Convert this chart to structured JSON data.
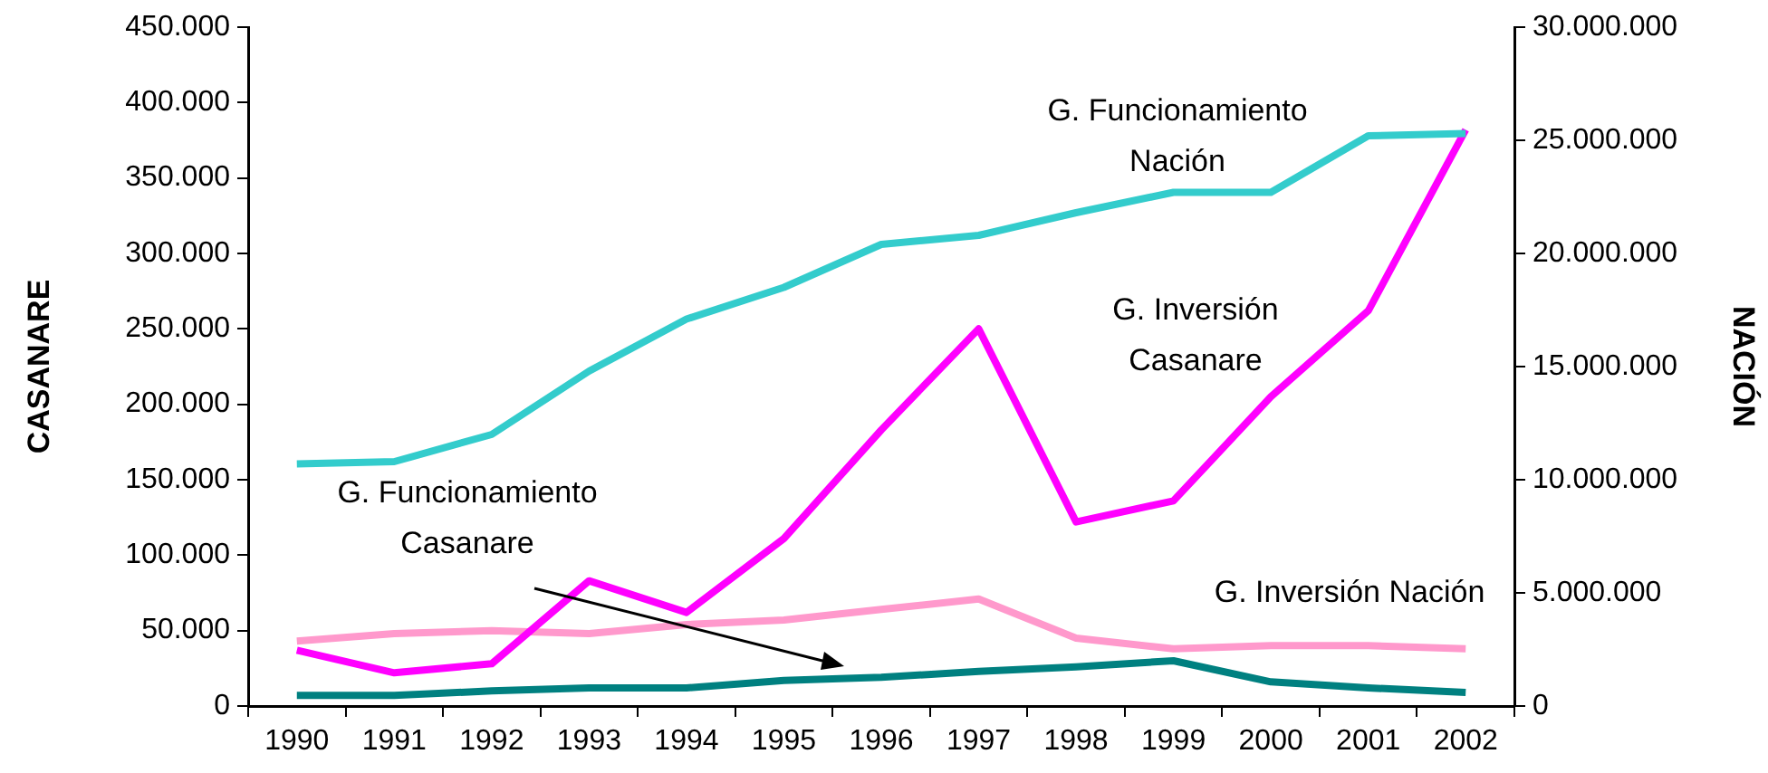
{
  "chart_data": {
    "type": "line",
    "categories": [
      "1990",
      "1991",
      "1992",
      "1993",
      "1994",
      "1995",
      "1996",
      "1997",
      "1998",
      "1999",
      "2000",
      "2001",
      "2002"
    ],
    "ylabel": "CASANARE",
    "y2label": "NACIÓN",
    "ylim": [
      0,
      450000
    ],
    "yticks": [
      {
        "value": 0,
        "label": "0"
      },
      {
        "value": 50000,
        "label": "50.000"
      },
      {
        "value": 100000,
        "label": "100.000"
      },
      {
        "value": 150000,
        "label": "150.000"
      },
      {
        "value": 200000,
        "label": "200.000"
      },
      {
        "value": 250000,
        "label": "250.000"
      },
      {
        "value": 300000,
        "label": "300.000"
      },
      {
        "value": 350000,
        "label": "350.000"
      },
      {
        "value": 400000,
        "label": "400.000"
      },
      {
        "value": 450000,
        "label": "450.000"
      }
    ],
    "y2lim": [
      0,
      30000000
    ],
    "y2ticks": [
      {
        "value": 0,
        "label": "0"
      },
      {
        "value": 5000000,
        "label": "5.000.000"
      },
      {
        "value": 10000000,
        "label": "10.000.000"
      },
      {
        "value": 15000000,
        "label": "15.000.000"
      },
      {
        "value": 20000000,
        "label": "20.000.000"
      },
      {
        "value": 25000000,
        "label": "25.000.000"
      },
      {
        "value": 30000000,
        "label": "30.000.000"
      }
    ],
    "grid": false,
    "legend": false,
    "marker": "none",
    "line_style": "solid",
    "series": [
      {
        "name": "G. Funcionamiento Nación",
        "color": "#33cccc",
        "axis": "y2",
        "values": [
          10700000,
          10800000,
          12000000,
          14800000,
          17100000,
          18500000,
          20400000,
          20800000,
          21800000,
          22700000,
          22700000,
          25200000,
          25300000
        ]
      },
      {
        "name": "G. Inversión Casanare",
        "color": "#ff00ff",
        "axis": "y",
        "values": [
          37000,
          22000,
          28000,
          83000,
          62000,
          111000,
          183000,
          250000,
          122000,
          136000,
          205000,
          262000,
          382000
        ]
      },
      {
        "name": "G. Inversión Nación",
        "color": "#ff99cc",
        "axis": "y2",
        "values": [
          2870000,
          3200000,
          3330000,
          3200000,
          3600000,
          3800000,
          4270000,
          4730000,
          3000000,
          2530000,
          2670000,
          2670000,
          2530000
        ]
      },
      {
        "name": "G. Funcionamiento Casanare",
        "color": "#008080",
        "axis": "y",
        "values": [
          7000,
          7000,
          10000,
          12000,
          12000,
          17000,
          19000,
          23000,
          26000,
          30000,
          16000,
          12000,
          9000
        ]
      }
    ]
  }
}
